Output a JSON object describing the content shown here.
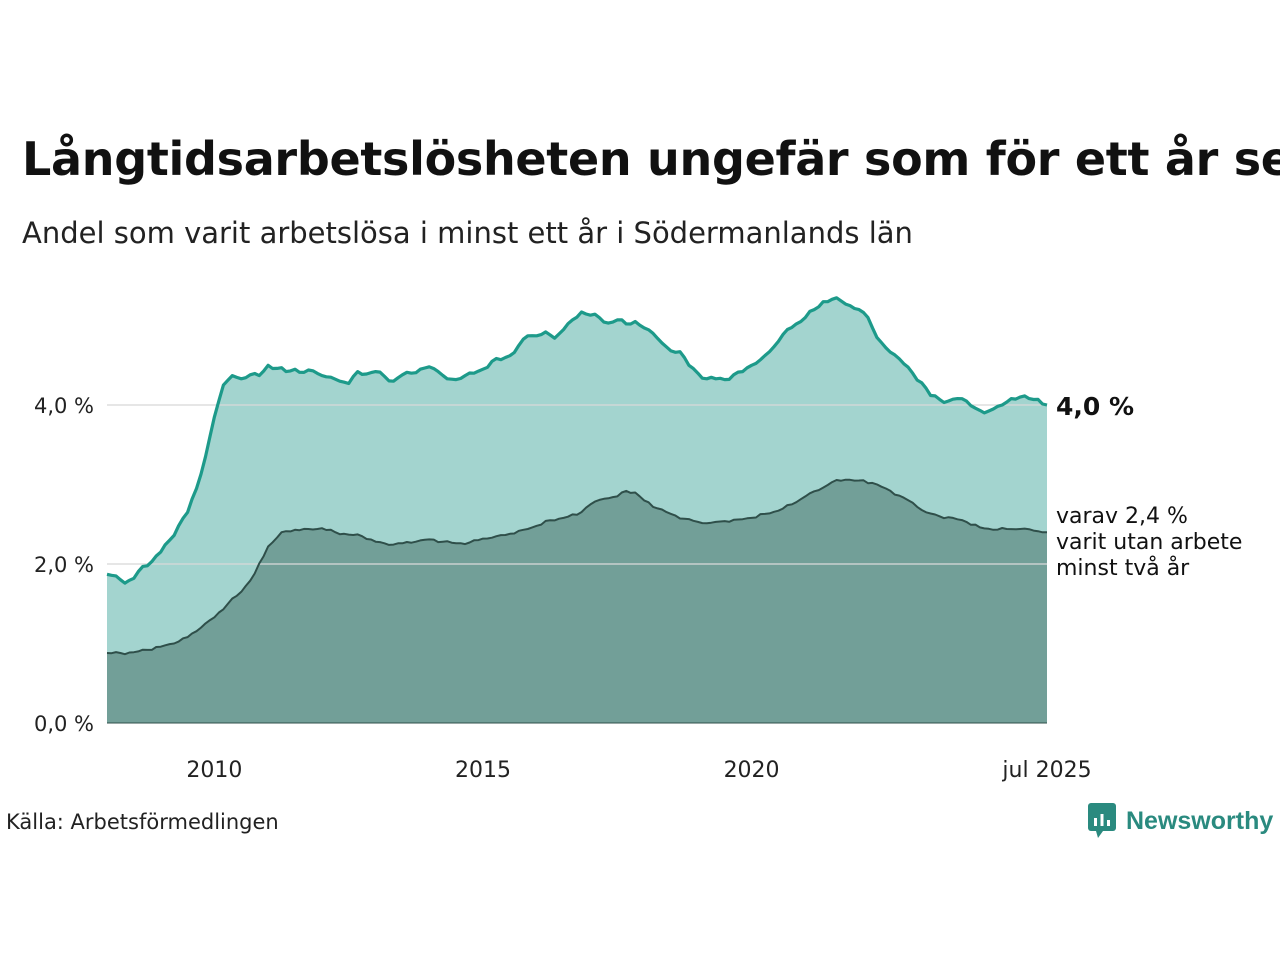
{
  "title": "Långtidsarbetslösheten ungefär som för ett år sen",
  "subtitle": "Andel som varit arbetslösa i minst ett år i Södermanlands län",
  "source": "Källa: Arbetsförmedlingen",
  "brand": {
    "name": "Newsworthy",
    "icon": "newsworthy-logo-icon",
    "color": "#2a8a7f"
  },
  "colors": {
    "total_line": "#1d9a8a",
    "total_fill": "#a3d4cf",
    "two_year_line": "#2f4f4a",
    "two_year_fill": "#729f98",
    "grid": "#d9d9d9"
  },
  "chart_data": {
    "type": "area",
    "x_start": "2008-01",
    "x_end": "2025-07",
    "frequency": "monthly",
    "x_ticks": [
      {
        "date": "2010-01",
        "label": "2010"
      },
      {
        "date": "2015-01",
        "label": "2015"
      },
      {
        "date": "2020-01",
        "label": "2020"
      },
      {
        "date": "2025-07",
        "label": "jul 2025"
      }
    ],
    "y_ticks": [
      {
        "value": 0,
        "label": "0,0 %"
      },
      {
        "value": 2,
        "label": "2,0 %"
      },
      {
        "value": 4,
        "label": "4,0 %"
      }
    ],
    "ylim": [
      0,
      5.4
    ],
    "series": [
      {
        "key": "total",
        "end_label": "4,0 %",
        "anchors": [
          [
            "2008-01",
            1.87
          ],
          [
            "2008-03",
            1.85
          ],
          [
            "2008-05",
            1.76
          ],
          [
            "2008-07",
            1.82
          ],
          [
            "2008-09",
            1.97
          ],
          [
            "2008-11",
            2.03
          ],
          [
            "2009-01",
            2.15
          ],
          [
            "2009-03",
            2.3
          ],
          [
            "2009-05",
            2.48
          ],
          [
            "2009-07",
            2.65
          ],
          [
            "2009-09",
            2.95
          ],
          [
            "2009-11",
            3.35
          ],
          [
            "2010-01",
            3.85
          ],
          [
            "2010-03",
            4.25
          ],
          [
            "2010-05",
            4.37
          ],
          [
            "2010-07",
            4.33
          ],
          [
            "2010-09",
            4.38
          ],
          [
            "2010-11",
            4.37
          ],
          [
            "2011-01",
            4.5
          ],
          [
            "2011-03",
            4.46
          ],
          [
            "2011-05",
            4.42
          ],
          [
            "2011-07",
            4.45
          ],
          [
            "2011-09",
            4.41
          ],
          [
            "2011-11",
            4.43
          ],
          [
            "2012-01",
            4.37
          ],
          [
            "2012-03",
            4.35
          ],
          [
            "2012-05",
            4.3
          ],
          [
            "2012-07",
            4.27
          ],
          [
            "2012-09",
            4.42
          ],
          [
            "2012-11",
            4.39
          ],
          [
            "2013-01",
            4.42
          ],
          [
            "2013-03",
            4.36
          ],
          [
            "2013-05",
            4.3
          ],
          [
            "2013-07",
            4.38
          ],
          [
            "2013-09",
            4.4
          ],
          [
            "2013-11",
            4.45
          ],
          [
            "2014-01",
            4.48
          ],
          [
            "2014-03",
            4.42
          ],
          [
            "2014-05",
            4.33
          ],
          [
            "2014-07",
            4.32
          ],
          [
            "2014-09",
            4.37
          ],
          [
            "2014-11",
            4.4
          ],
          [
            "2015-01",
            4.45
          ],
          [
            "2015-03",
            4.55
          ],
          [
            "2015-05",
            4.57
          ],
          [
            "2015-07",
            4.62
          ],
          [
            "2015-09",
            4.75
          ],
          [
            "2015-11",
            4.87
          ],
          [
            "2016-01",
            4.87
          ],
          [
            "2016-03",
            4.92
          ],
          [
            "2016-05",
            4.84
          ],
          [
            "2016-07",
            4.95
          ],
          [
            "2016-09",
            5.07
          ],
          [
            "2016-11",
            5.17
          ],
          [
            "2017-01",
            5.13
          ],
          [
            "2017-03",
            5.1
          ],
          [
            "2017-05",
            5.03
          ],
          [
            "2017-07",
            5.07
          ],
          [
            "2017-09",
            5.02
          ],
          [
            "2017-11",
            5.05
          ],
          [
            "2018-01",
            4.97
          ],
          [
            "2018-03",
            4.9
          ],
          [
            "2018-05",
            4.78
          ],
          [
            "2018-07",
            4.68
          ],
          [
            "2018-09",
            4.67
          ],
          [
            "2018-11",
            4.5
          ],
          [
            "2019-01",
            4.4
          ],
          [
            "2019-03",
            4.33
          ],
          [
            "2019-05",
            4.33
          ],
          [
            "2019-07",
            4.32
          ],
          [
            "2019-09",
            4.38
          ],
          [
            "2019-11",
            4.42
          ],
          [
            "2020-01",
            4.5
          ],
          [
            "2020-03",
            4.57
          ],
          [
            "2020-05",
            4.67
          ],
          [
            "2020-07",
            4.8
          ],
          [
            "2020-09",
            4.95
          ],
          [
            "2020-11",
            5.02
          ],
          [
            "2021-01",
            5.1
          ],
          [
            "2021-03",
            5.2
          ],
          [
            "2021-05",
            5.3
          ],
          [
            "2021-07",
            5.33
          ],
          [
            "2021-09",
            5.31
          ],
          [
            "2021-11",
            5.25
          ],
          [
            "2022-01",
            5.2
          ],
          [
            "2022-03",
            5.1
          ],
          [
            "2022-05",
            4.85
          ],
          [
            "2022-07",
            4.72
          ],
          [
            "2022-09",
            4.63
          ],
          [
            "2022-11",
            4.52
          ],
          [
            "2023-01",
            4.4
          ],
          [
            "2023-03",
            4.28
          ],
          [
            "2023-05",
            4.12
          ],
          [
            "2023-07",
            4.07
          ],
          [
            "2023-09",
            4.05
          ],
          [
            "2023-11",
            4.08
          ],
          [
            "2024-01",
            4.05
          ],
          [
            "2024-03",
            3.96
          ],
          [
            "2024-05",
            3.9
          ],
          [
            "2024-07",
            3.95
          ],
          [
            "2024-09",
            4.0
          ],
          [
            "2024-11",
            4.08
          ],
          [
            "2025-01",
            4.1
          ],
          [
            "2025-03",
            4.08
          ],
          [
            "2025-05",
            4.07
          ],
          [
            "2025-07",
            4.0
          ]
        ]
      },
      {
        "key": "two_year",
        "end_label_lines": [
          "varav 2,4 %",
          "varit utan arbete",
          "minst två år"
        ],
        "anchors": [
          [
            "2008-01",
            0.88
          ],
          [
            "2008-04",
            0.88
          ],
          [
            "2008-07",
            0.89
          ],
          [
            "2008-10",
            0.92
          ],
          [
            "2009-01",
            0.96
          ],
          [
            "2009-04",
            1.0
          ],
          [
            "2009-07",
            1.08
          ],
          [
            "2009-10",
            1.2
          ],
          [
            "2010-01",
            1.33
          ],
          [
            "2010-04",
            1.5
          ],
          [
            "2010-07",
            1.65
          ],
          [
            "2010-10",
            1.88
          ],
          [
            "2011-01",
            2.22
          ],
          [
            "2011-04",
            2.4
          ],
          [
            "2011-07",
            2.43
          ],
          [
            "2011-10",
            2.44
          ],
          [
            "2012-01",
            2.45
          ],
          [
            "2012-04",
            2.4
          ],
          [
            "2012-07",
            2.37
          ],
          [
            "2012-10",
            2.35
          ],
          [
            "2013-01",
            2.28
          ],
          [
            "2013-04",
            2.24
          ],
          [
            "2013-07",
            2.26
          ],
          [
            "2013-10",
            2.28
          ],
          [
            "2014-01",
            2.31
          ],
          [
            "2014-04",
            2.28
          ],
          [
            "2014-07",
            2.26
          ],
          [
            "2014-10",
            2.27
          ],
          [
            "2015-01",
            2.32
          ],
          [
            "2015-04",
            2.35
          ],
          [
            "2015-07",
            2.38
          ],
          [
            "2015-10",
            2.43
          ],
          [
            "2016-01",
            2.48
          ],
          [
            "2016-04",
            2.55
          ],
          [
            "2016-07",
            2.58
          ],
          [
            "2016-10",
            2.62
          ],
          [
            "2017-01",
            2.75
          ],
          [
            "2017-04",
            2.82
          ],
          [
            "2017-07",
            2.85
          ],
          [
            "2017-09",
            2.92
          ],
          [
            "2017-11",
            2.9
          ],
          [
            "2018-01",
            2.8
          ],
          [
            "2018-04",
            2.7
          ],
          [
            "2018-07",
            2.63
          ],
          [
            "2018-10",
            2.57
          ],
          [
            "2019-01",
            2.53
          ],
          [
            "2019-04",
            2.52
          ],
          [
            "2019-07",
            2.54
          ],
          [
            "2019-10",
            2.56
          ],
          [
            "2020-01",
            2.58
          ],
          [
            "2020-04",
            2.63
          ],
          [
            "2020-07",
            2.67
          ],
          [
            "2020-10",
            2.75
          ],
          [
            "2021-01",
            2.85
          ],
          [
            "2021-04",
            2.93
          ],
          [
            "2021-07",
            3.03
          ],
          [
            "2021-10",
            3.06
          ],
          [
            "2022-01",
            3.05
          ],
          [
            "2022-04",
            3.02
          ],
          [
            "2022-07",
            2.95
          ],
          [
            "2022-10",
            2.86
          ],
          [
            "2023-01",
            2.77
          ],
          [
            "2023-04",
            2.65
          ],
          [
            "2023-07",
            2.6
          ],
          [
            "2023-10",
            2.58
          ],
          [
            "2024-01",
            2.53
          ],
          [
            "2024-04",
            2.46
          ],
          [
            "2024-07",
            2.43
          ],
          [
            "2024-10",
            2.44
          ],
          [
            "2025-01",
            2.44
          ],
          [
            "2025-04",
            2.42
          ],
          [
            "2025-07",
            2.4
          ]
        ]
      }
    ],
    "grid": true,
    "xlabel": "",
    "ylabel": ""
  }
}
